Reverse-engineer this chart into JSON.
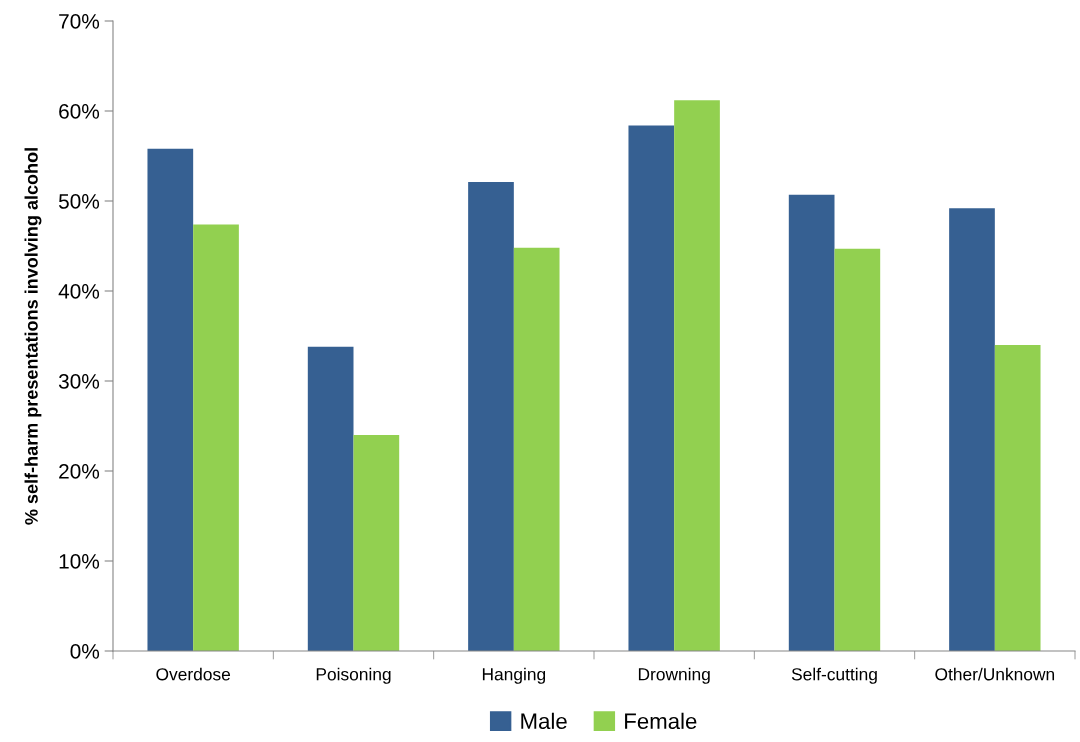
{
  "chart_data": {
    "type": "bar",
    "ylabel": "% self-harm presentations involving alcohol",
    "categories": [
      "Overdose",
      "Poisoning",
      "Hanging",
      "Drowning",
      "Self-cutting",
      "Other/Unknown"
    ],
    "series": [
      {
        "name": "Male",
        "color": "#366092",
        "values": [
          55.8,
          33.8,
          52.1,
          58.4,
          50.7,
          49.2
        ]
      },
      {
        "name": "Female",
        "color": "#92d050",
        "values": [
          47.4,
          24.0,
          44.8,
          61.2,
          44.7,
          34.0
        ]
      }
    ],
    "ylim": [
      0,
      70
    ],
    "yticks": [
      {
        "value": 0,
        "label": "0%"
      },
      {
        "value": 10,
        "label": "10%"
      },
      {
        "value": 20,
        "label": "20%"
      },
      {
        "value": 30,
        "label": "30%"
      },
      {
        "value": 40,
        "label": "40%"
      },
      {
        "value": 50,
        "label": "50%"
      },
      {
        "value": 60,
        "label": "60%"
      },
      {
        "value": 70,
        "label": "70%"
      }
    ],
    "grid": false,
    "legend": "bottom"
  }
}
